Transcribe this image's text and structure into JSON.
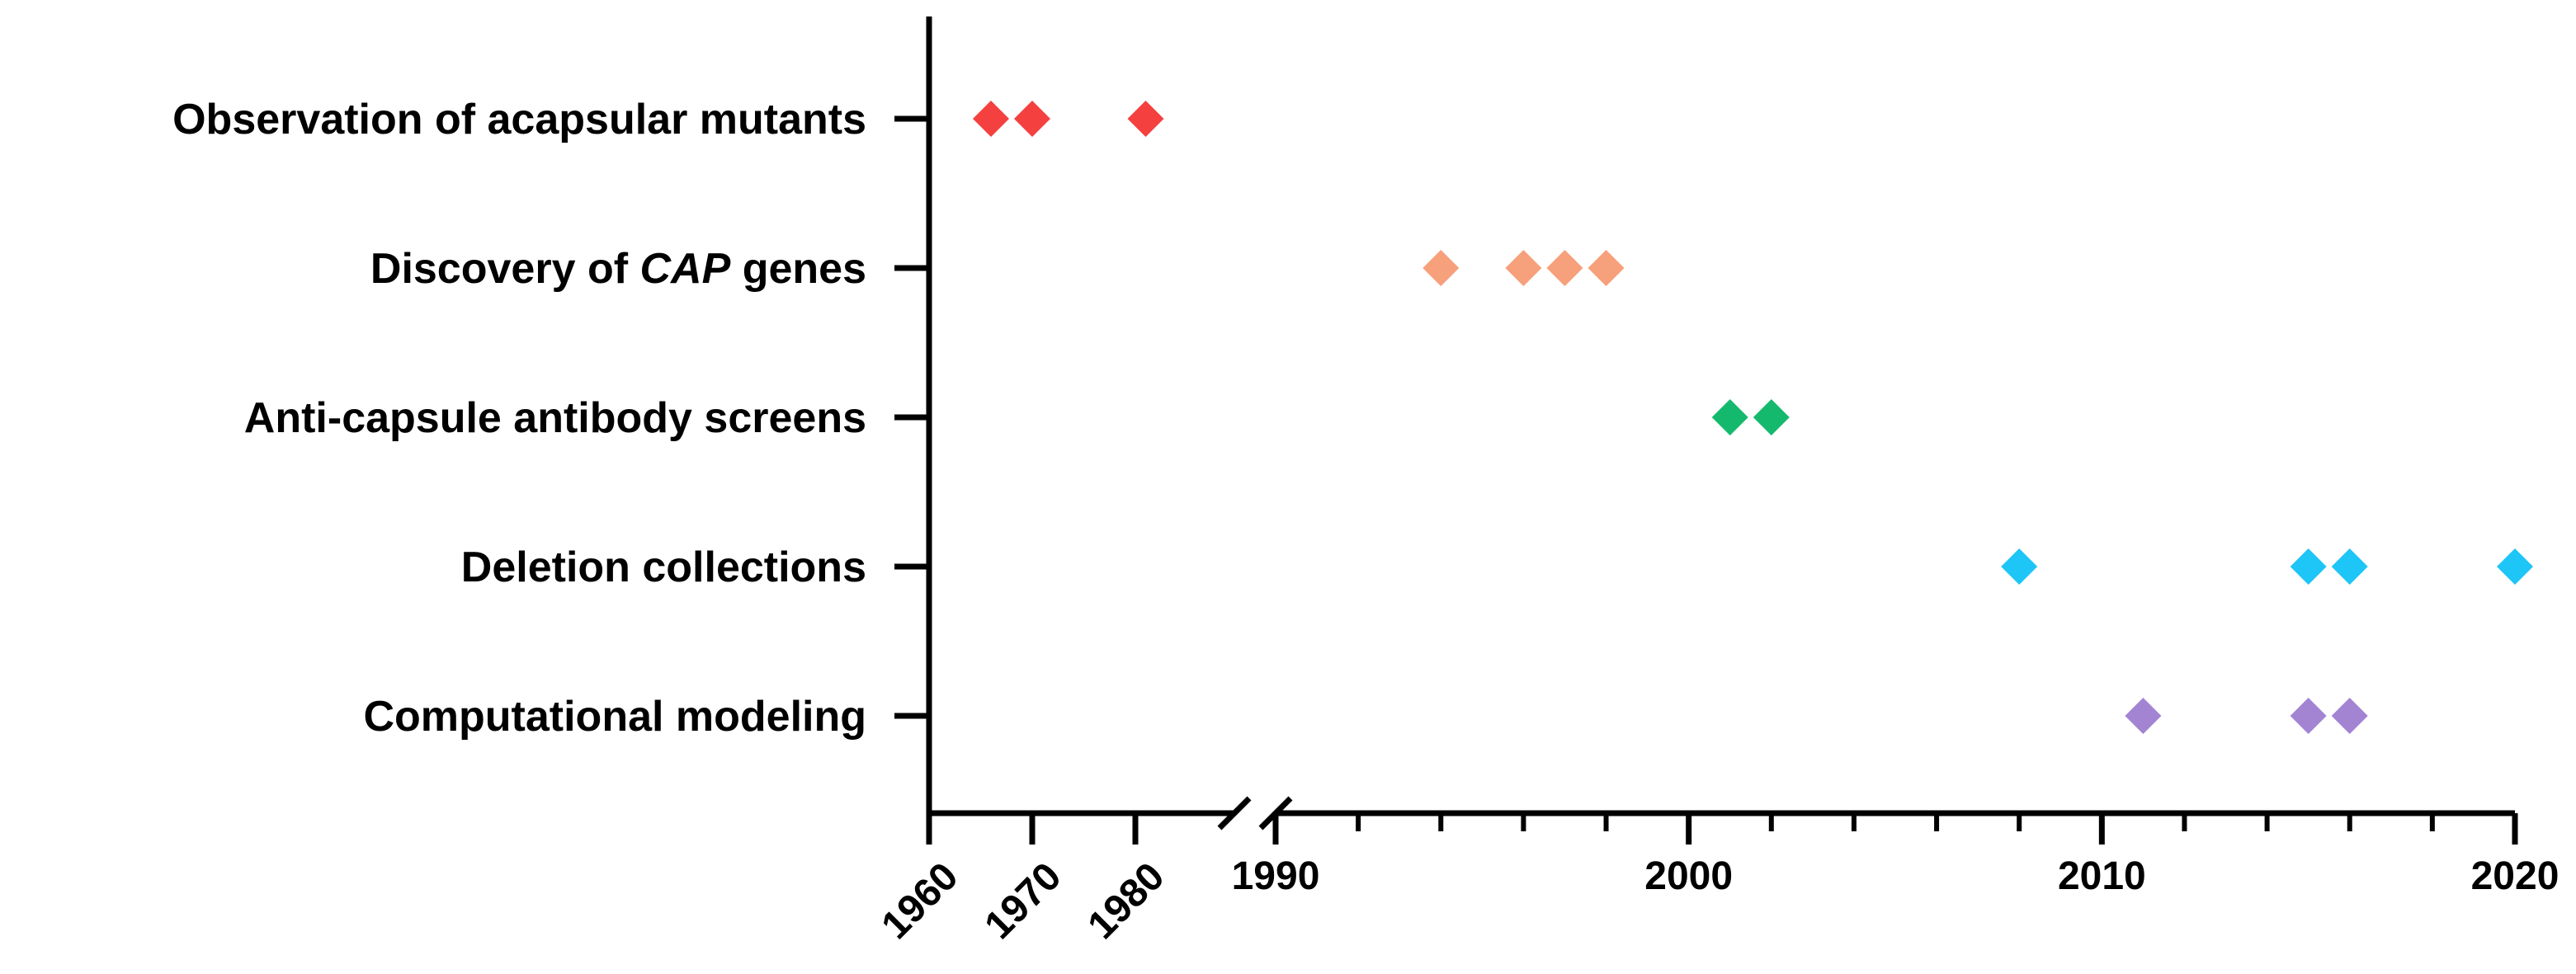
{
  "chart_data": {
    "type": "scatter",
    "title": "",
    "xlabel": "",
    "ylabel": "",
    "categories": [
      {
        "parts": [
          {
            "text": "Observation of acapsular mutants",
            "italic": false
          }
        ]
      },
      {
        "parts": [
          {
            "text": "Discovery of ",
            "italic": false
          },
          {
            "text": "CAP",
            "italic": true
          },
          {
            "text": " genes",
            "italic": false
          }
        ]
      },
      {
        "parts": [
          {
            "text": "Anti-capsule antibody screens",
            "italic": false
          }
        ]
      },
      {
        "parts": [
          {
            "text": "Deletion collections",
            "italic": false
          }
        ]
      },
      {
        "parts": [
          {
            "text": "Computational modeling",
            "italic": false
          }
        ]
      }
    ],
    "series": [
      {
        "category_index": 0,
        "color": "#F54040",
        "x": [
          1966,
          1970,
          1981
        ]
      },
      {
        "category_index": 1,
        "color": "#F7A07C",
        "x": [
          1994,
          1996,
          1997,
          1998
        ]
      },
      {
        "category_index": 2,
        "color": "#15B96D",
        "x": [
          2001,
          2002
        ]
      },
      {
        "category_index": 3,
        "color": "#1EC5F7",
        "x": [
          2008,
          2015,
          2016,
          2020
        ]
      },
      {
        "category_index": 4,
        "color": "#A384D3",
        "x": [
          2011,
          2015,
          2016
        ]
      }
    ],
    "x_axis": {
      "segments": [
        {
          "range": [
            1960,
            1985
          ],
          "ticks": [
            "1960",
            "1970",
            "1980"
          ],
          "tick_label_rotation": -45,
          "minor_step": 0
        },
        {
          "range": [
            1990,
            2020
          ],
          "ticks": [
            "1990",
            "2000",
            "2010",
            "2020"
          ],
          "tick_label_rotation": 0,
          "minor_step": 2
        }
      ],
      "axis_break": true
    },
    "grid": false,
    "legend": "none"
  }
}
